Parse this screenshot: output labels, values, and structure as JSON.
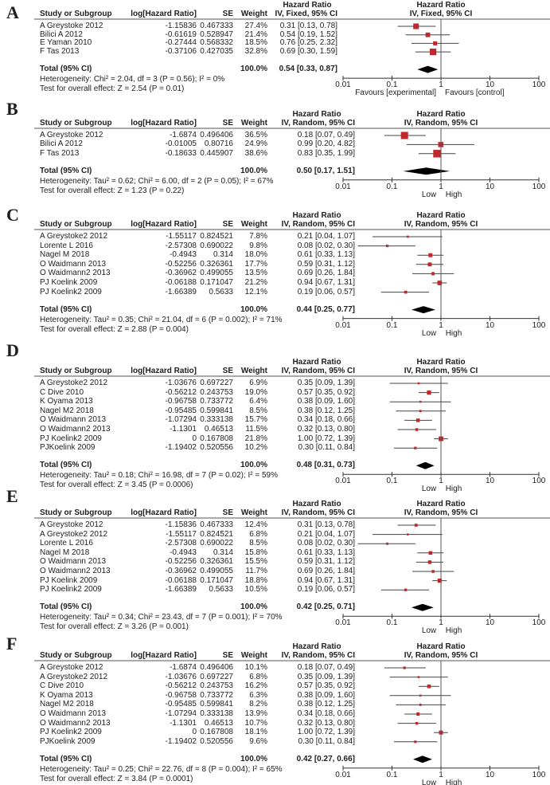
{
  "columns": {
    "study": "Study or Subgroup",
    "loghr": "log[Hazard Ratio]",
    "se": "SE",
    "weight": "Weight",
    "hr": "Hazard Ratio",
    "total": "Total (95% CI)",
    "total_weight": "100.0%"
  },
  "axis_ticks": [
    "0.01",
    "0.1",
    "1",
    "10",
    "100"
  ],
  "colors": {
    "marker": "#c0282d",
    "diamond": "#000000",
    "line": "#444444"
  },
  "chart_data": [
    {
      "type": "forest",
      "panel": "A",
      "model": "IV, Fixed, 95% CI",
      "x_scale": "log",
      "xlim": [
        0.01,
        100
      ],
      "rows": [
        {
          "study": "A Greystoke 2012",
          "loghr": "-1.15836",
          "se": "0.467333",
          "weight": "27.4%",
          "ci_text": "0.31 [0.13, 0.78]",
          "hr": 0.31,
          "lo": 0.13,
          "hi": 0.78
        },
        {
          "study": "Bilici A 2012",
          "loghr": "-0.61619",
          "se": "0.528947",
          "weight": "21.4%",
          "ci_text": "0.54 [0.19, 1.52]",
          "hr": 0.54,
          "lo": 0.19,
          "hi": 1.52
        },
        {
          "study": "E Yaman 2010",
          "loghr": "-0.27444",
          "se": "0.568332",
          "weight": "18.5%",
          "ci_text": "0.76 [0.25, 2.32]",
          "hr": 0.76,
          "lo": 0.25,
          "hi": 2.32
        },
        {
          "study": "F Tas 2013",
          "loghr": "-0.37106",
          "se": "0.427035",
          "weight": "32.8%",
          "ci_text": "0.69 [0.30, 1.59]",
          "hr": 0.69,
          "lo": 0.3,
          "hi": 1.59
        }
      ],
      "total": {
        "ci_text": "0.54 [0.33, 0.87]",
        "hr": 0.54,
        "lo": 0.33,
        "hi": 0.87
      },
      "heterogeneity": "Heterogeneity: Chi² = 2.04, df = 3 (P = 0.56); I² = 0%",
      "overall_effect": "Test for overall effect: Z = 2.54 (P = 0.01)",
      "favours_left": "Favours [experimental]",
      "favours_right": "Favours [control]"
    },
    {
      "type": "forest",
      "panel": "B",
      "model": "IV, Random, 95% CI",
      "x_scale": "log",
      "xlim": [
        0.01,
        100
      ],
      "rows": [
        {
          "study": "A Greystoke 2012",
          "loghr": "-1.6874",
          "se": "0.496406",
          "weight": "36.5%",
          "ci_text": "0.18 [0.07, 0.49]",
          "hr": 0.18,
          "lo": 0.07,
          "hi": 0.49
        },
        {
          "study": "Bilici A 2012",
          "loghr": "-0.01005",
          "se": "0.80716",
          "weight": "24.9%",
          "ci_text": "0.99 [0.20, 4.82]",
          "hr": 0.99,
          "lo": 0.2,
          "hi": 4.82
        },
        {
          "study": "F Tas 2013",
          "loghr": "-0.18633",
          "se": "0.445907",
          "weight": "38.6%",
          "ci_text": "0.83 [0.35, 1.99]",
          "hr": 0.83,
          "lo": 0.35,
          "hi": 1.99
        }
      ],
      "total": {
        "ci_text": "0.50 [0.17, 1.51]",
        "hr": 0.5,
        "lo": 0.17,
        "hi": 1.51
      },
      "heterogeneity": "Heterogeneity: Tau² = 0.62; Chi² = 6.00, df = 2 (P = 0.05); I² = 67%",
      "overall_effect": "Test for overall effect: Z = 1.23 (P = 0.22)",
      "favours_left": "Low",
      "favours_right": "High"
    },
    {
      "type": "forest",
      "panel": "C",
      "model": "IV, Random, 95% CI",
      "x_scale": "log",
      "xlim": [
        0.01,
        100
      ],
      "rows": [
        {
          "study": "A Greystoke2 2012",
          "loghr": "-1.55117",
          "se": "0.824521",
          "weight": "7.8%",
          "ci_text": "0.21 [0.04, 1.07]",
          "hr": 0.21,
          "lo": 0.04,
          "hi": 1.07
        },
        {
          "study": "Lorente L 2016",
          "loghr": "-2.57308",
          "se": "0.690022",
          "weight": "9.8%",
          "ci_text": "0.08 [0.02, 0.30]",
          "hr": 0.08,
          "lo": 0.02,
          "hi": 0.3
        },
        {
          "study": "Nagel M 2018",
          "loghr": "-0.4943",
          "se": "0.314",
          "weight": "18.0%",
          "ci_text": "0.61 [0.33, 1.13]",
          "hr": 0.61,
          "lo": 0.33,
          "hi": 1.13
        },
        {
          "study": "O Waidmann 2013",
          "loghr": "-0.52256",
          "se": "0.326361",
          "weight": "17.7%",
          "ci_text": "0.59 [0.31, 1.12]",
          "hr": 0.59,
          "lo": 0.31,
          "hi": 1.12
        },
        {
          "study": "O Waidmann2 2013",
          "loghr": "-0.36962",
          "se": "0.499055",
          "weight": "13.5%",
          "ci_text": "0.69 [0.26, 1.84]",
          "hr": 0.69,
          "lo": 0.26,
          "hi": 1.84
        },
        {
          "study": "PJ Koelink 2009",
          "loghr": "-0.06188",
          "se": "0.171047",
          "weight": "21.2%",
          "ci_text": "0.94 [0.67, 1.31]",
          "hr": 0.94,
          "lo": 0.67,
          "hi": 1.31
        },
        {
          "study": "PJ Koelink2 2009",
          "loghr": "-1.66389",
          "se": "0.5633",
          "weight": "12.1%",
          "ci_text": "0.19 [0.06, 0.57]",
          "hr": 0.19,
          "lo": 0.06,
          "hi": 0.57
        }
      ],
      "total": {
        "ci_text": "0.44 [0.25, 0.77]",
        "hr": 0.44,
        "lo": 0.25,
        "hi": 0.77
      },
      "heterogeneity": "Heterogeneity: Tau² = 0.35; Chi² = 21.04, df = 6 (P = 0.002); I² = 71%",
      "overall_effect": "Test for overall effect: Z = 2.88 (P = 0.004)",
      "favours_left": "Low",
      "favours_right": "High"
    },
    {
      "type": "forest",
      "panel": "D",
      "model": "IV, Random, 95% CI",
      "x_scale": "log",
      "xlim": [
        0.01,
        100
      ],
      "rows": [
        {
          "study": "A Greystoke2 2012",
          "loghr": "-1.03676",
          "se": "0.697227",
          "weight": "6.9%",
          "ci_text": "0.35 [0.09, 1.39]",
          "hr": 0.35,
          "lo": 0.09,
          "hi": 1.39
        },
        {
          "study": "C Dive 2010",
          "loghr": "-0.56212",
          "se": "0.243753",
          "weight": "19.0%",
          "ci_text": "0.57 [0.35, 0.92]",
          "hr": 0.57,
          "lo": 0.35,
          "hi": 0.92
        },
        {
          "study": "K Oyama 2013",
          "loghr": "-0.96758",
          "se": "0.733772",
          "weight": "6.4%",
          "ci_text": "0.38 [0.09, 1.60]",
          "hr": 0.38,
          "lo": 0.09,
          "hi": 1.6
        },
        {
          "study": "Nagel M2 2018",
          "loghr": "-0.95485",
          "se": "0.599841",
          "weight": "8.5%",
          "ci_text": "0.38 [0.12, 1.25]",
          "hr": 0.38,
          "lo": 0.12,
          "hi": 1.25
        },
        {
          "study": "O Waidmann 2013",
          "loghr": "-1.07294",
          "se": "0.333138",
          "weight": "15.7%",
          "ci_text": "0.34 [0.18, 0.66]",
          "hr": 0.34,
          "lo": 0.18,
          "hi": 0.66
        },
        {
          "study": "O Waidmann2 2013",
          "loghr": "-1.1301",
          "se": "0.46513",
          "weight": "11.5%",
          "ci_text": "0.32 [0.13, 0.80]",
          "hr": 0.32,
          "lo": 0.13,
          "hi": 0.8
        },
        {
          "study": "PJ Koelink2 2009",
          "loghr": "0",
          "se": "0.167808",
          "weight": "21.8%",
          "ci_text": "1.00 [0.72, 1.39]",
          "hr": 1.0,
          "lo": 0.72,
          "hi": 1.39
        },
        {
          "study": "PJKoelink 2009",
          "loghr": "-1.19402",
          "se": "0.520556",
          "weight": "10.2%",
          "ci_text": "0.30 [0.11, 0.84]",
          "hr": 0.3,
          "lo": 0.11,
          "hi": 0.84
        }
      ],
      "total": {
        "ci_text": "0.48 [0.31, 0.73]",
        "hr": 0.48,
        "lo": 0.31,
        "hi": 0.73
      },
      "heterogeneity": "Heterogeneity: Tau² = 0.18; Chi² = 16.98, df = 7 (P = 0.02); I² = 59%",
      "overall_effect": "Test for overall effect: Z = 3.45 (P = 0.0006)",
      "favours_left": "Low",
      "favours_right": "High"
    },
    {
      "type": "forest",
      "panel": "E",
      "model": "IV, Random, 95% CI",
      "x_scale": "log",
      "xlim": [
        0.01,
        100
      ],
      "rows": [
        {
          "study": "A Greystoke 2012",
          "loghr": "-1.15836",
          "se": "0.467333",
          "weight": "12.4%",
          "ci_text": "0.31 [0.13, 0.78]",
          "hr": 0.31,
          "lo": 0.13,
          "hi": 0.78
        },
        {
          "study": "A Greystoke2 2012",
          "loghr": "-1.55117",
          "se": "0.824521",
          "weight": "6.8%",
          "ci_text": "0.21 [0.04, 1.07]",
          "hr": 0.21,
          "lo": 0.04,
          "hi": 1.07
        },
        {
          "study": "Lorente L 2016",
          "loghr": "-2.57308",
          "se": "0.690022",
          "weight": "8.5%",
          "ci_text": "0.08 [0.02, 0.30]",
          "hr": 0.08,
          "lo": 0.02,
          "hi": 0.3
        },
        {
          "study": "Nagel M 2018",
          "loghr": "-0.4943",
          "se": "0.314",
          "weight": "15.8%",
          "ci_text": "0.61 [0.33, 1.13]",
          "hr": 0.61,
          "lo": 0.33,
          "hi": 1.13
        },
        {
          "study": "O Waidmann 2013",
          "loghr": "-0.52256",
          "se": "0.326361",
          "weight": "15.5%",
          "ci_text": "0.59 [0.31, 1.12]",
          "hr": 0.59,
          "lo": 0.31,
          "hi": 1.12
        },
        {
          "study": "O Waidmann2 2013",
          "loghr": "-0.36962",
          "se": "0.499055",
          "weight": "11.7%",
          "ci_text": "0.69 [0.26, 1.84]",
          "hr": 0.69,
          "lo": 0.26,
          "hi": 1.84
        },
        {
          "study": "PJ Koelink 2009",
          "loghr": "-0.06188",
          "se": "0.171047",
          "weight": "18.8%",
          "ci_text": "0.94 [0.67, 1.31]",
          "hr": 0.94,
          "lo": 0.67,
          "hi": 1.31
        },
        {
          "study": "PJ Koelink2 2009",
          "loghr": "-1.66389",
          "se": "0.5633",
          "weight": "10.5%",
          "ci_text": "0.19 [0.06, 0.57]",
          "hr": 0.19,
          "lo": 0.06,
          "hi": 0.57
        }
      ],
      "total": {
        "ci_text": "0.42 [0.25, 0.71]",
        "hr": 0.42,
        "lo": 0.25,
        "hi": 0.71
      },
      "heterogeneity": "Heterogeneity: Tau² = 0.34; Chi² = 23.43, df = 7 (P = 0.001); I² = 70%",
      "overall_effect": "Test for overall effect: Z = 3.26 (P = 0.001)",
      "favours_left": "Low",
      "favours_right": "High"
    },
    {
      "type": "forest",
      "panel": "F",
      "model": "IV, Random, 95% CI",
      "x_scale": "log",
      "xlim": [
        0.01,
        100
      ],
      "rows": [
        {
          "study": "A Greystoke 2012",
          "loghr": "-1.6874",
          "se": "0.496406",
          "weight": "10.1%",
          "ci_text": "0.18 [0.07, 0.49]",
          "hr": 0.18,
          "lo": 0.07,
          "hi": 0.49
        },
        {
          "study": "A Greystoke2 2012",
          "loghr": "-1.03676",
          "se": "0.697227",
          "weight": "6.8%",
          "ci_text": "0.35 [0.09, 1.39]",
          "hr": 0.35,
          "lo": 0.09,
          "hi": 1.39
        },
        {
          "study": "C Dive 2010",
          "loghr": "-0.56212",
          "se": "0.243753",
          "weight": "16.2%",
          "ci_text": "0.57 [0.35, 0.92]",
          "hr": 0.57,
          "lo": 0.35,
          "hi": 0.92
        },
        {
          "study": "K Oyama 2013",
          "loghr": "-0.96758",
          "se": "0.733772",
          "weight": "6.3%",
          "ci_text": "0.38 [0.09, 1.60]",
          "hr": 0.38,
          "lo": 0.09,
          "hi": 1.6
        },
        {
          "study": "Nagel M2 2018",
          "loghr": "-0.95485",
          "se": "0.599841",
          "weight": "8.2%",
          "ci_text": "0.38 [0.12, 1.25]",
          "hr": 0.38,
          "lo": 0.12,
          "hi": 1.25
        },
        {
          "study": "O Waidmann 2013",
          "loghr": "-1.07294",
          "se": "0.333138",
          "weight": "13.9%",
          "ci_text": "0.34 [0.18, 0.66]",
          "hr": 0.34,
          "lo": 0.18,
          "hi": 0.66
        },
        {
          "study": "O Waidmann2 2013",
          "loghr": "-1.1301",
          "se": "0.46513",
          "weight": "10.7%",
          "ci_text": "0.32 [0.13, 0.80]",
          "hr": 0.32,
          "lo": 0.13,
          "hi": 0.8
        },
        {
          "study": "PJ Koelink2 2009",
          "loghr": "0",
          "se": "0.167808",
          "weight": "18.1%",
          "ci_text": "1.00 [0.72, 1.39]",
          "hr": 1.0,
          "lo": 0.72,
          "hi": 1.39
        },
        {
          "study": "PJKoelink 2009",
          "loghr": "-1.19402",
          "se": "0.520556",
          "weight": "9.6%",
          "ci_text": "0.30 [0.11, 0.84]",
          "hr": 0.3,
          "lo": 0.11,
          "hi": 0.84
        }
      ],
      "total": {
        "ci_text": "0.42 [0.27, 0.66]",
        "hr": 0.42,
        "lo": 0.27,
        "hi": 0.66
      },
      "heterogeneity": "Heterogeneity: Tau² = 0.25; Chi² = 22.76, df = 8 (P = 0.004); I² = 65%",
      "overall_effect": "Test for overall effect: Z = 3.84 (P = 0.0001)",
      "favours_left": "Low",
      "favours_right": "High"
    }
  ]
}
